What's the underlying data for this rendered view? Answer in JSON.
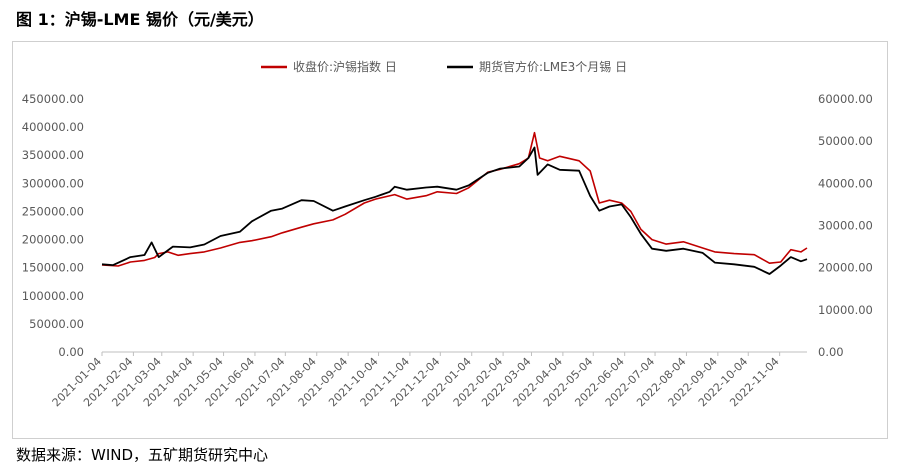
{
  "figure": {
    "title": "图 1：沪锡-LME 锡价（元/美元）",
    "source": "数据来源：WIND，五矿期货研究中心"
  },
  "chart_data": {
    "type": "line",
    "title": "",
    "xlabel": "",
    "ylabel": "",
    "legend_position": "top",
    "grid": false,
    "x_ticks": [
      "2021-01-04",
      "2021-02-04",
      "2021-03-04",
      "2021-04-04",
      "2021-05-04",
      "2021-06-04",
      "2021-07-04",
      "2021-08-04",
      "2021-09-04",
      "2021-10-04",
      "2021-11-04",
      "2021-12-04",
      "2022-01-04",
      "2022-02-04",
      "2022-03-04",
      "2022-04-04",
      "2022-05-04",
      "2022-06-04",
      "2022-07-04",
      "2022-08-04",
      "2022-09-04",
      "2022-10-04",
      "2022-11-04"
    ],
    "y_left": {
      "ylim": [
        0,
        450000
      ],
      "ticks": [
        "0.00",
        "50000.00",
        "100000.00",
        "150000.00",
        "200000.00",
        "250000.00",
        "300000.00",
        "350000.00",
        "400000.00",
        "450000.00"
      ]
    },
    "y_right": {
      "ylim": [
        0,
        60000
      ],
      "ticks": [
        "0.00",
        "10000.00",
        "20000.00",
        "30000.00",
        "40000.00",
        "50000.00",
        "60000.00"
      ]
    },
    "series": [
      {
        "name": "收盘价:沪锡指数 日",
        "color": "#c00000",
        "axis": "left",
        "points": [
          [
            "2021-01-04",
            155000
          ],
          [
            "2021-01-20",
            153000
          ],
          [
            "2021-02-01",
            160000
          ],
          [
            "2021-02-15",
            163000
          ],
          [
            "2021-02-25",
            168000
          ],
          [
            "2021-03-01",
            175000
          ],
          [
            "2021-03-10",
            178000
          ],
          [
            "2021-03-20",
            172000
          ],
          [
            "2021-04-01",
            175000
          ],
          [
            "2021-04-15",
            178000
          ],
          [
            "2021-05-01",
            185000
          ],
          [
            "2021-05-20",
            195000
          ],
          [
            "2021-06-01",
            198000
          ],
          [
            "2021-06-20",
            205000
          ],
          [
            "2021-07-01",
            212000
          ],
          [
            "2021-07-20",
            222000
          ],
          [
            "2021-08-01",
            228000
          ],
          [
            "2021-08-20",
            235000
          ],
          [
            "2021-09-01",
            245000
          ],
          [
            "2021-09-20",
            265000
          ],
          [
            "2021-10-01",
            272000
          ],
          [
            "2021-10-20",
            280000
          ],
          [
            "2021-11-01",
            272000
          ],
          [
            "2021-11-20",
            278000
          ],
          [
            "2021-12-01",
            285000
          ],
          [
            "2021-12-20",
            282000
          ],
          [
            "2022-01-01",
            292000
          ],
          [
            "2022-01-20",
            320000
          ],
          [
            "2022-02-01",
            325000
          ],
          [
            "2022-02-20",
            335000
          ],
          [
            "2022-03-01",
            345000
          ],
          [
            "2022-03-07",
            390000
          ],
          [
            "2022-03-12",
            345000
          ],
          [
            "2022-03-20",
            340000
          ],
          [
            "2022-04-01",
            348000
          ],
          [
            "2022-04-20",
            340000
          ],
          [
            "2022-05-01",
            322000
          ],
          [
            "2022-05-10",
            265000
          ],
          [
            "2022-05-20",
            270000
          ],
          [
            "2022-06-01",
            265000
          ],
          [
            "2022-06-10",
            250000
          ],
          [
            "2022-06-20",
            218000
          ],
          [
            "2022-07-01",
            200000
          ],
          [
            "2022-07-15",
            192000
          ],
          [
            "2022-08-01",
            196000
          ],
          [
            "2022-08-20",
            185000
          ],
          [
            "2022-09-01",
            178000
          ],
          [
            "2022-09-20",
            175000
          ],
          [
            "2022-10-10",
            173000
          ],
          [
            "2022-10-25",
            158000
          ],
          [
            "2022-11-05",
            160000
          ],
          [
            "2022-11-15",
            182000
          ],
          [
            "2022-11-25",
            178000
          ],
          [
            "2022-12-01",
            185000
          ]
        ]
      },
      {
        "name": "期货官方价:LME3个月锡 日",
        "color": "#000000",
        "axis": "right",
        "points": [
          [
            "2021-01-04",
            20800
          ],
          [
            "2021-01-15",
            20600
          ],
          [
            "2021-02-01",
            22500
          ],
          [
            "2021-02-15",
            23000
          ],
          [
            "2021-02-22",
            26000
          ],
          [
            "2021-03-01",
            22500
          ],
          [
            "2021-03-15",
            25000
          ],
          [
            "2021-04-01",
            24800
          ],
          [
            "2021-04-15",
            25500
          ],
          [
            "2021-05-01",
            27500
          ],
          [
            "2021-05-20",
            28500
          ],
          [
            "2021-06-01",
            31000
          ],
          [
            "2021-06-20",
            33500
          ],
          [
            "2021-07-01",
            34000
          ],
          [
            "2021-07-20",
            36000
          ],
          [
            "2021-08-01",
            35800
          ],
          [
            "2021-08-20",
            33500
          ],
          [
            "2021-09-01",
            34500
          ],
          [
            "2021-09-20",
            36000
          ],
          [
            "2021-10-01",
            36800
          ],
          [
            "2021-10-15",
            38000
          ],
          [
            "2021-10-20",
            39200
          ],
          [
            "2021-11-01",
            38500
          ],
          [
            "2021-11-20",
            39000
          ],
          [
            "2021-12-01",
            39200
          ],
          [
            "2021-12-20",
            38500
          ],
          [
            "2022-01-01",
            39500
          ],
          [
            "2022-01-20",
            42500
          ],
          [
            "2022-02-01",
            43500
          ],
          [
            "2022-02-20",
            44000
          ],
          [
            "2022-03-01",
            46000
          ],
          [
            "2022-03-07",
            48500
          ],
          [
            "2022-03-10",
            42000
          ],
          [
            "2022-03-20",
            44500
          ],
          [
            "2022-04-01",
            43200
          ],
          [
            "2022-04-20",
            43000
          ],
          [
            "2022-05-01",
            37000
          ],
          [
            "2022-05-10",
            33500
          ],
          [
            "2022-05-20",
            34500
          ],
          [
            "2022-06-01",
            35000
          ],
          [
            "2022-06-10",
            32000
          ],
          [
            "2022-06-20",
            28000
          ],
          [
            "2022-07-01",
            24500
          ],
          [
            "2022-07-15",
            24000
          ],
          [
            "2022-08-01",
            24500
          ],
          [
            "2022-08-20",
            23500
          ],
          [
            "2022-09-01",
            21200
          ],
          [
            "2022-09-20",
            20800
          ],
          [
            "2022-10-10",
            20200
          ],
          [
            "2022-10-25",
            18500
          ],
          [
            "2022-11-05",
            20500
          ],
          [
            "2022-11-15",
            22500
          ],
          [
            "2022-11-25",
            21500
          ],
          [
            "2022-12-01",
            22000
          ]
        ]
      }
    ]
  }
}
